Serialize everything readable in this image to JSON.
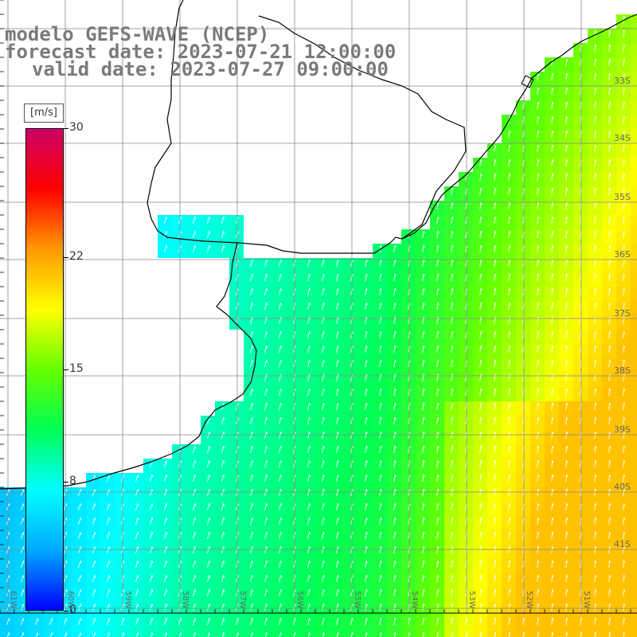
{
  "title": {
    "line1": "modelo GEFS-WAVE (NCEP)",
    "line2": "forecast date: 2023-07-21 12:00:00",
    "line3": "valid date: 2023-07-27 09:00:00"
  },
  "colorbar": {
    "unit": "[m/s]",
    "ticks": [
      "30",
      "22",
      "15",
      "8",
      "0"
    ],
    "tick_values": [
      30,
      22,
      15,
      8,
      0
    ],
    "min": 0,
    "max": 30,
    "colors": [
      "#0000ff",
      "#00aaff",
      "#00ffff",
      "#00ff55",
      "#66ff00",
      "#ffff00",
      "#ff9900",
      "#ff0000",
      "#cc0066"
    ]
  },
  "lat_labels": [
    "33S",
    "34S",
    "35S",
    "36S",
    "37S",
    "38S",
    "39S",
    "40S",
    "41S"
  ],
  "lon_labels": [
    "61W",
    "60W",
    "59W",
    "58W",
    "57W",
    "56W",
    "55W",
    "54W",
    "53W",
    "52W",
    "51W"
  ],
  "chart_data": {
    "type": "heatmap",
    "variable": "wind speed",
    "unit": "m/s",
    "field_description": "values increase from SW (about 5 m/s) to E/NE (about 17 m/s), arrows point north-east",
    "lon_range": [
      -62,
      -51
    ],
    "lat_range": [
      -41.3,
      -31.2
    ]
  }
}
